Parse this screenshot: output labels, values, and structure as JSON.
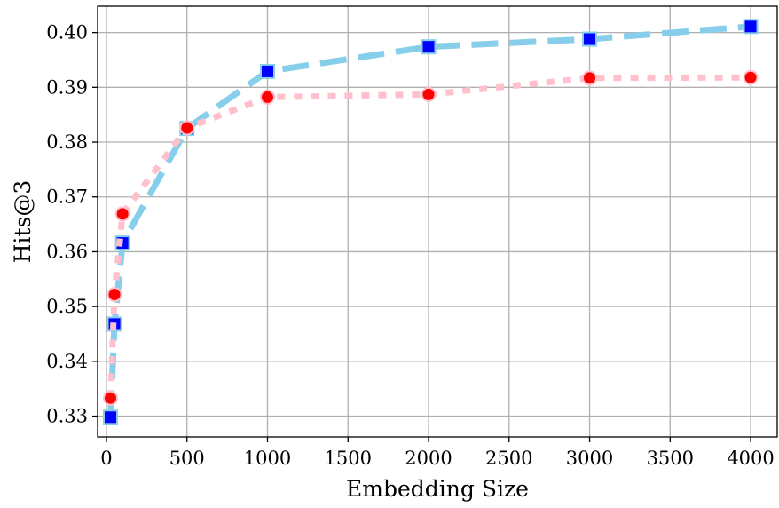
{
  "chart_data": {
    "type": "line",
    "title": "",
    "xlabel": "Embedding Size",
    "ylabel": "Hits@3",
    "xlim": [
      -55,
      4165
    ],
    "ylim": [
      0.3262,
      0.4048
    ],
    "xticks": [
      0,
      500,
      1000,
      1500,
      2000,
      2500,
      3000,
      3500,
      4000
    ],
    "xtick_labels": [
      "0",
      "500",
      "1000",
      "1500",
      "2000",
      "2500",
      "3000",
      "3500",
      "4000"
    ],
    "yticks": [
      0.33,
      0.34,
      0.35,
      0.36,
      0.37,
      0.38,
      0.39,
      0.4
    ],
    "ytick_labels": [
      "0.33",
      "0.34",
      "0.35",
      "0.36",
      "0.37",
      "0.38",
      "0.39",
      "0.40"
    ],
    "grid": true,
    "legend": "none",
    "series": [
      {
        "line_color": "#87ceeb",
        "line_style": "dashed",
        "marker": "square",
        "marker_color": "#0000ff",
        "x": [
          25,
          50,
          100,
          500,
          1000,
          2000,
          3000,
          4000
        ],
        "y": [
          0.3298,
          0.3468,
          0.3616,
          0.3825,
          0.3929,
          0.3974,
          0.3988,
          0.4011
        ]
      },
      {
        "line_color": "#ffc0cb",
        "line_style": "dotted",
        "marker": "circle",
        "marker_color": "#ff0000",
        "x": [
          25,
          50,
          100,
          500,
          1000,
          2000,
          3000,
          4000
        ],
        "y": [
          0.3333,
          0.3522,
          0.3669,
          0.3826,
          0.3882,
          0.3887,
          0.3917,
          0.3918
        ]
      }
    ]
  }
}
